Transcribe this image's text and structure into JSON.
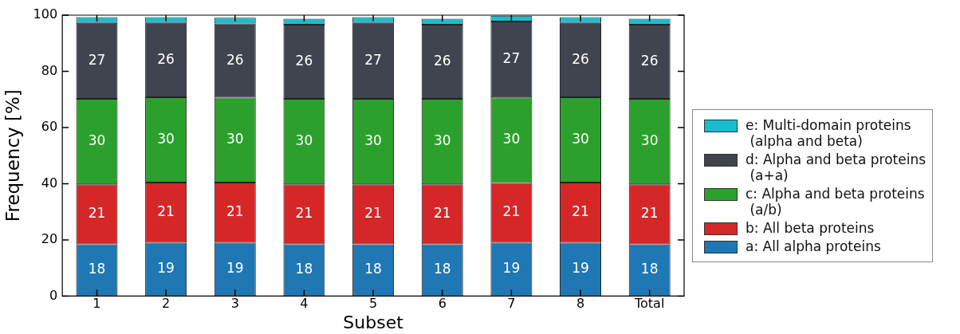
{
  "chart_data": {
    "type": "bar",
    "stacked": true,
    "xlabel": "Subset",
    "ylabel": "Frequency [%]",
    "categories": [
      "1",
      "2",
      "3",
      "4",
      "5",
      "6",
      "7",
      "8",
      "Total"
    ],
    "ylim": [
      0,
      100
    ],
    "yticks": [
      0,
      20,
      40,
      60,
      80,
      100
    ],
    "grid": false,
    "legend": "right",
    "series": [
      {
        "name": "a: All alpha proteins",
        "color": "#1f77b4",
        "values": [
          18.4,
          19.0,
          19.0,
          18.4,
          18.4,
          18.4,
          19.0,
          19.0,
          18.4
        ],
        "value_labels": [
          "18",
          "19",
          "19",
          "18",
          "18",
          "18",
          "19",
          "19",
          "18"
        ]
      },
      {
        "name": "b: All beta proteins",
        "color": "#d62728",
        "values": [
          21.4,
          21.4,
          21.4,
          21.4,
          21.4,
          21.4,
          21.3,
          21.4,
          21.4
        ],
        "value_labels": [
          "21",
          "21",
          "21",
          "21",
          "21",
          "21",
          "21",
          "21",
          "21"
        ]
      },
      {
        "name": "c: Alpha and beta proteins\n (a/b)",
        "color": "#2ca02c",
        "values": [
          30.4,
          30.4,
          30.2,
          30.4,
          30.4,
          30.4,
          30.4,
          30.4,
          30.4
        ],
        "value_labels": [
          "30",
          "30",
          "30",
          "30",
          "30",
          "30",
          "30",
          "30",
          "30"
        ]
      },
      {
        "name": "d: Alpha and beta proteins\n (a+a)",
        "color": "#40444f",
        "values": [
          27.0,
          26.4,
          26.4,
          26.4,
          27.0,
          26.4,
          27.0,
          26.4,
          26.4
        ],
        "value_labels": [
          "27",
          "26",
          "26",
          "26",
          "27",
          "26",
          "27",
          "26",
          "26"
        ]
      },
      {
        "name": "e: Multi-domain proteins\n (alpha and beta)",
        "color": "#17becf",
        "values": [
          2.1,
          2.1,
          2.1,
          2.1,
          2.1,
          2.1,
          2.1,
          2.1,
          2.1
        ]
      }
    ]
  }
}
